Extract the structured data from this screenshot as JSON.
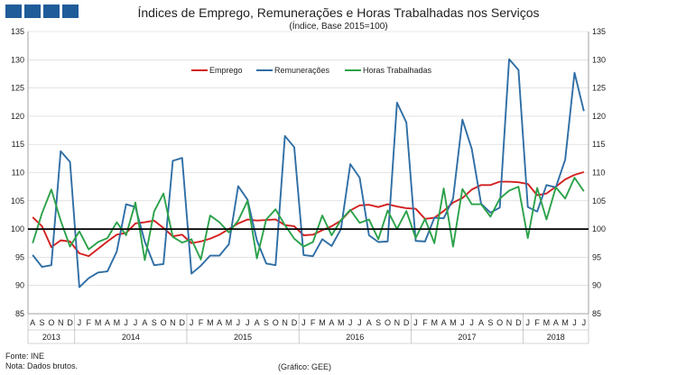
{
  "header": {
    "title": "Índices de Emprego,  Remunerações e Horas Trabalhadas nos Serviços",
    "subtitle": "(Índice, Base 2015=100)"
  },
  "footer": {
    "fonte": "Fonte:  INE",
    "nota": "Nota: Dados brutos.",
    "grafico": "(Gráfico: GEE)"
  },
  "colors": {
    "emprego": "#d42020",
    "remuneracoes": "#2f6ea5",
    "horas": "#2ca24a",
    "reference_line": "#000000",
    "grid": "#d0d0d0",
    "logo": "#1f5c99"
  },
  "chart_data": {
    "type": "line",
    "title": "Índices de Emprego,  Remunerações e Horas Trabalhadas nos Serviços",
    "subtitle": "(Índice, Base 2015=100)",
    "ylim": [
      85,
      135
    ],
    "yticks": [
      85,
      90,
      95,
      100,
      105,
      110,
      115,
      120,
      125,
      130,
      135
    ],
    "reference_line": 100,
    "legend_position": "top-center",
    "months": [
      "A",
      "S",
      "O",
      "N",
      "D",
      "J",
      "F",
      "M",
      "A",
      "M",
      "J",
      "J",
      "A",
      "S",
      "O",
      "N",
      "D",
      "J",
      "F",
      "M",
      "A",
      "M",
      "J",
      "J",
      "A",
      "S",
      "O",
      "N",
      "D",
      "J",
      "F",
      "M",
      "A",
      "M",
      "J",
      "J",
      "A",
      "S",
      "O",
      "N",
      "D",
      "J",
      "F",
      "M",
      "A",
      "M",
      "J",
      "J",
      "A",
      "S",
      "O",
      "N",
      "D",
      "J",
      "F",
      "M",
      "A",
      "M",
      "J",
      "J"
    ],
    "years": [
      {
        "label": "2013",
        "start": 0,
        "end": 4
      },
      {
        "label": "2014",
        "start": 5,
        "end": 16
      },
      {
        "label": "2015",
        "start": 17,
        "end": 28
      },
      {
        "label": "2016",
        "start": 29,
        "end": 40
      },
      {
        "label": "2017",
        "start": 41,
        "end": 52
      },
      {
        "label": "2018",
        "start": 53,
        "end": 59
      }
    ],
    "series": [
      {
        "name": "Emprego",
        "color": "#d42020",
        "values": [
          102.1,
          100.5,
          96.8,
          98.0,
          97.8,
          95.7,
          95.2,
          96.5,
          97.8,
          99.0,
          99.3,
          101.0,
          101.2,
          101.5,
          100.2,
          98.7,
          99.0,
          97.5,
          97.8,
          98.3,
          99.0,
          100.0,
          101.0,
          101.7,
          101.5,
          101.6,
          101.7,
          100.7,
          100.5,
          98.9,
          99.0,
          99.8,
          100.5,
          101.5,
          103.3,
          104.2,
          104.3,
          103.9,
          104.4,
          104.0,
          103.7,
          103.6,
          101.8,
          102.0,
          103.2,
          104.7,
          105.5,
          107.0,
          107.8,
          107.8,
          108.4,
          108.4,
          108.3,
          108.0,
          106.0,
          106.3,
          107.5,
          108.8,
          109.6,
          110.1
        ]
      },
      {
        "name": "Remunerações",
        "color": "#2f6ea5",
        "values": [
          95.4,
          93.3,
          93.6,
          113.8,
          111.9,
          89.7,
          91.3,
          92.3,
          92.5,
          96.0,
          104.4,
          103.9,
          97.8,
          93.6,
          93.8,
          112.1,
          112.6,
          92.1,
          93.5,
          95.3,
          95.3,
          97.3,
          107.6,
          105.2,
          98.0,
          93.9,
          93.6,
          116.5,
          114.5,
          95.4,
          95.2,
          98.2,
          97.0,
          100.0,
          111.5,
          109.1,
          98.9,
          97.7,
          97.8,
          122.4,
          118.9,
          97.9,
          97.8,
          102.0,
          101.9,
          105.4,
          119.4,
          114.2,
          104.5,
          102.9,
          103.8,
          130.1,
          128.2,
          103.9,
          103.1,
          107.8,
          107.4,
          112.3,
          127.7,
          120.9
        ]
      },
      {
        "name": "Horas Trabalhadas",
        "color": "#2ca24a",
        "values": [
          97.5,
          102.8,
          107.0,
          101.5,
          96.9,
          99.6,
          96.4,
          97.7,
          98.4,
          101.2,
          98.9,
          104.7,
          94.5,
          103.1,
          106.3,
          98.6,
          97.6,
          98.2,
          94.6,
          102.4,
          101.2,
          99.4,
          101.5,
          105.0,
          94.8,
          101.7,
          103.5,
          100.7,
          98.3,
          96.9,
          97.7,
          102.4,
          98.9,
          101.6,
          103.4,
          101.1,
          101.7,
          98.2,
          103.3,
          100.0,
          103.2,
          98.4,
          101.8,
          97.5,
          107.2,
          96.9,
          107.1,
          104.4,
          104.4,
          102.2,
          105.4,
          106.8,
          107.5,
          98.4,
          107.3,
          101.7,
          107.4,
          105.4,
          109.1,
          106.7
        ]
      }
    ]
  }
}
